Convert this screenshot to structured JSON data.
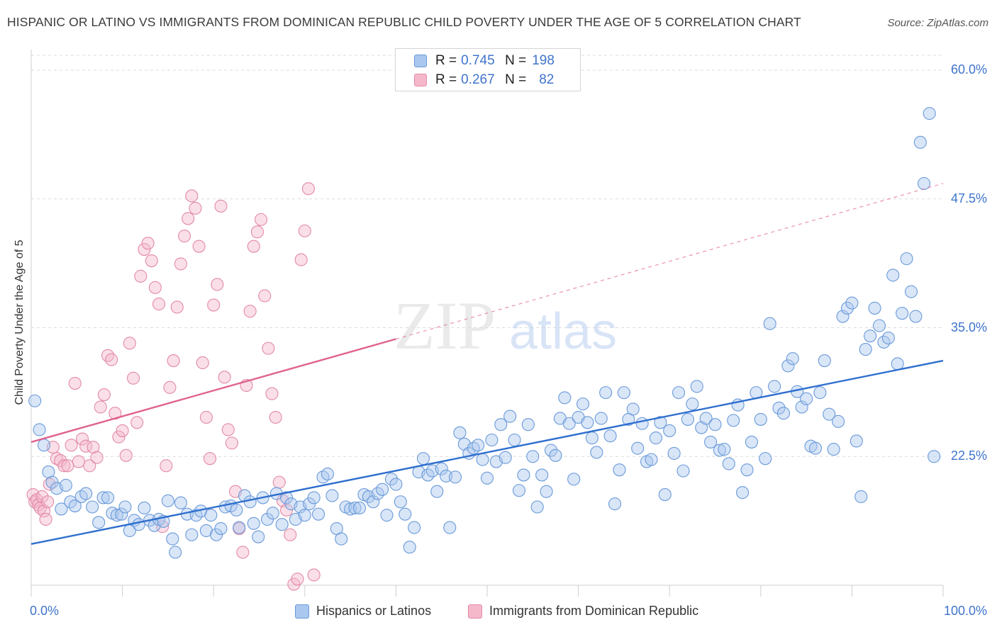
{
  "chart_data": {
    "type": "scatter",
    "title": "HISPANIC OR LATINO VS IMMIGRANTS FROM DOMINICAN REPUBLIC CHILD POVERTY UNDER THE AGE OF 5 CORRELATION CHART",
    "source": "Source: ZipAtlas.com",
    "ylabel": "Child Poverty Under the Age of 5",
    "xlim": [
      0,
      100
    ],
    "ylim": [
      10,
      62
    ],
    "x_tick_labels": [
      "0.0%",
      "100.0%"
    ],
    "y_ticks": [
      22.5,
      35.0,
      47.5,
      60.0
    ],
    "y_tick_labels": [
      "22.5%",
      "35.0%",
      "47.5%",
      "60.0%"
    ],
    "grid": true,
    "watermark": "ZIPatlas",
    "legend_placement": "top-center",
    "stats": [
      {
        "r_label": "R =",
        "r": "0.745",
        "n_label": "N =",
        "n": "198"
      },
      {
        "r_label": "R =",
        "r": "0.267",
        "n_label": "N =",
        "n": "82"
      }
    ],
    "series": [
      {
        "name": "Hispanics or Latinos",
        "fill": "#aac8ef",
        "stroke": "#6a9ad8",
        "line_color": "#2f6fce",
        "trend": {
          "x0": 0,
          "y0": 14.0,
          "x1": 100,
          "y1": 31.8,
          "dashed_to": null
        },
        "points": [
          [
            0.4,
            27.9
          ],
          [
            0.9,
            25.1
          ],
          [
            1.4,
            23.6
          ],
          [
            1.9,
            21.0
          ],
          [
            2.3,
            20.0
          ],
          [
            2.8,
            19.4
          ],
          [
            3.3,
            17.4
          ],
          [
            3.8,
            19.7
          ],
          [
            4.3,
            18.1
          ],
          [
            4.8,
            17.7
          ],
          [
            5.5,
            18.6
          ],
          [
            6.0,
            18.9
          ],
          [
            6.7,
            17.6
          ],
          [
            7.4,
            16.1
          ],
          [
            7.9,
            18.5
          ],
          [
            8.4,
            18.5
          ],
          [
            8.9,
            17.0
          ],
          [
            9.4,
            16.8
          ],
          [
            9.9,
            16.9
          ],
          [
            10.3,
            17.6
          ],
          [
            10.8,
            15.3
          ],
          [
            11.3,
            16.3
          ],
          [
            11.8,
            15.9
          ],
          [
            12.4,
            17.5
          ],
          [
            13.0,
            16.3
          ],
          [
            13.5,
            15.8
          ],
          [
            14.0,
            16.4
          ],
          [
            14.5,
            16.2
          ],
          [
            15.0,
            18.2
          ],
          [
            15.5,
            14.5
          ],
          [
            15.8,
            13.2
          ],
          [
            16.4,
            18.0
          ],
          [
            17.1,
            16.9
          ],
          [
            17.6,
            14.9
          ],
          [
            18.1,
            16.8
          ],
          [
            18.6,
            17.2
          ],
          [
            19.2,
            15.3
          ],
          [
            19.7,
            16.8
          ],
          [
            20.3,
            14.9
          ],
          [
            20.8,
            15.5
          ],
          [
            21.3,
            17.6
          ],
          [
            21.9,
            17.7
          ],
          [
            22.5,
            17.3
          ],
          [
            22.8,
            15.6
          ],
          [
            23.4,
            18.7
          ],
          [
            24.0,
            18.1
          ],
          [
            24.4,
            16.0
          ],
          [
            24.9,
            14.7
          ],
          [
            25.4,
            18.5
          ],
          [
            25.9,
            16.4
          ],
          [
            26.5,
            17.0
          ],
          [
            26.9,
            18.9
          ],
          [
            27.5,
            15.9
          ],
          [
            28.0,
            18.5
          ],
          [
            28.5,
            17.9
          ],
          [
            29.0,
            16.4
          ],
          [
            29.5,
            17.6
          ],
          [
            30.0,
            16.8
          ],
          [
            30.5,
            17.9
          ],
          [
            31.0,
            18.5
          ],
          [
            31.5,
            16.9
          ],
          [
            32.0,
            20.5
          ],
          [
            32.5,
            20.8
          ],
          [
            33.0,
            18.7
          ],
          [
            33.5,
            15.5
          ],
          [
            34.0,
            14.5
          ],
          [
            34.5,
            17.6
          ],
          [
            35.0,
            17.4
          ],
          [
            35.5,
            17.5
          ],
          [
            36.0,
            17.5
          ],
          [
            36.5,
            18.8
          ],
          [
            37.0,
            18.6
          ],
          [
            37.5,
            18.1
          ],
          [
            38.0,
            18.9
          ],
          [
            38.5,
            19.3
          ],
          [
            39.0,
            16.8
          ],
          [
            39.5,
            20.3
          ],
          [
            40.0,
            19.8
          ],
          [
            40.5,
            18.1
          ],
          [
            41.0,
            16.9
          ],
          [
            41.5,
            13.7
          ],
          [
            42.0,
            15.6
          ],
          [
            42.5,
            21.0
          ],
          [
            43.0,
            22.3
          ],
          [
            43.5,
            20.7
          ],
          [
            44.0,
            21.1
          ],
          [
            44.5,
            19.1
          ],
          [
            45.0,
            21.3
          ],
          [
            45.5,
            20.6
          ],
          [
            45.9,
            15.6
          ],
          [
            46.5,
            20.5
          ],
          [
            47.0,
            24.8
          ],
          [
            47.5,
            23.7
          ],
          [
            48.0,
            22.8
          ],
          [
            48.5,
            23.3
          ],
          [
            49.0,
            23.6
          ],
          [
            49.5,
            22.2
          ],
          [
            50.0,
            20.4
          ],
          [
            50.5,
            24.1
          ],
          [
            51.0,
            22.0
          ],
          [
            51.5,
            25.6
          ],
          [
            52.0,
            22.4
          ],
          [
            52.5,
            26.4
          ],
          [
            53.0,
            24.1
          ],
          [
            53.5,
            19.2
          ],
          [
            54.0,
            20.7
          ],
          [
            54.5,
            25.6
          ],
          [
            55.0,
            22.5
          ],
          [
            55.5,
            17.6
          ],
          [
            56.0,
            20.7
          ],
          [
            56.5,
            19.1
          ],
          [
            57.0,
            23.1
          ],
          [
            57.5,
            22.6
          ],
          [
            58.0,
            26.2
          ],
          [
            58.5,
            28.2
          ],
          [
            59.0,
            25.7
          ],
          [
            59.5,
            20.3
          ],
          [
            60.0,
            26.3
          ],
          [
            60.5,
            27.6
          ],
          [
            61.0,
            25.8
          ],
          [
            61.5,
            24.3
          ],
          [
            62.0,
            22.9
          ],
          [
            62.5,
            26.2
          ],
          [
            63.0,
            28.7
          ],
          [
            63.5,
            24.5
          ],
          [
            64.0,
            17.9
          ],
          [
            64.5,
            21.2
          ],
          [
            65.0,
            28.7
          ],
          [
            65.5,
            26.1
          ],
          [
            66.0,
            27.1
          ],
          [
            66.5,
            23.3
          ],
          [
            67.0,
            25.7
          ],
          [
            67.5,
            22.0
          ],
          [
            68.0,
            22.2
          ],
          [
            68.5,
            24.3
          ],
          [
            69.0,
            25.8
          ],
          [
            69.5,
            18.8
          ],
          [
            70.0,
            25.0
          ],
          [
            70.5,
            22.8
          ],
          [
            71.0,
            28.7
          ],
          [
            71.5,
            21.1
          ],
          [
            72.0,
            26.1
          ],
          [
            72.5,
            27.6
          ],
          [
            73.0,
            29.3
          ],
          [
            73.5,
            25.3
          ],
          [
            74.0,
            26.2
          ],
          [
            74.5,
            23.9
          ],
          [
            75.0,
            25.6
          ],
          [
            75.5,
            23.1
          ],
          [
            76.0,
            23.2
          ],
          [
            76.5,
            21.8
          ],
          [
            77.0,
            26.0
          ],
          [
            77.5,
            27.5
          ],
          [
            78.0,
            19.0
          ],
          [
            78.5,
            21.2
          ],
          [
            79.0,
            23.9
          ],
          [
            79.5,
            28.7
          ],
          [
            80.0,
            26.1
          ],
          [
            80.5,
            22.3
          ],
          [
            81.0,
            35.4
          ],
          [
            81.5,
            29.3
          ],
          [
            82.0,
            27.2
          ],
          [
            82.5,
            26.7
          ],
          [
            83.0,
            31.3
          ],
          [
            83.5,
            32.0
          ],
          [
            84.0,
            28.8
          ],
          [
            84.5,
            27.3
          ],
          [
            85.0,
            28.1
          ],
          [
            85.5,
            23.5
          ],
          [
            86.0,
            23.3
          ],
          [
            86.5,
            28.7
          ],
          [
            87.0,
            31.8
          ],
          [
            87.5,
            26.6
          ],
          [
            88.0,
            23.2
          ],
          [
            88.5,
            25.9
          ],
          [
            89.0,
            36.1
          ],
          [
            89.5,
            36.9
          ],
          [
            90.0,
            37.4
          ],
          [
            90.5,
            24.0
          ],
          [
            91.0,
            18.6
          ],
          [
            91.5,
            32.9
          ],
          [
            92.0,
            34.2
          ],
          [
            92.5,
            36.9
          ],
          [
            93.0,
            35.2
          ],
          [
            93.5,
            33.6
          ],
          [
            94.0,
            34.0
          ],
          [
            94.5,
            40.1
          ],
          [
            95.0,
            31.5
          ],
          [
            95.5,
            36.4
          ],
          [
            96.0,
            41.7
          ],
          [
            96.5,
            38.5
          ],
          [
            97.0,
            36.1
          ],
          [
            97.5,
            53.0
          ],
          [
            97.9,
            49.0
          ],
          [
            98.5,
            55.8
          ],
          [
            99.0,
            22.5
          ]
        ]
      },
      {
        "name": "Immigrants from Dominican Republic",
        "fill": "#f5b8cb",
        "stroke": "#e28aa6",
        "line_color": "#e0628e",
        "trend": {
          "x0": 0,
          "y0": 23.9,
          "x1": 40,
          "y1": 33.9,
          "dashed_to": {
            "x": 100,
            "y": 49.0
          }
        },
        "points": [
          [
            0.2,
            18.8
          ],
          [
            0.4,
            18.1
          ],
          [
            0.6,
            18.3
          ],
          [
            0.8,
            17.8
          ],
          [
            1.0,
            17.5
          ],
          [
            1.2,
            18.6
          ],
          [
            1.4,
            17.2
          ],
          [
            1.6,
            16.4
          ],
          [
            1.8,
            18.1
          ],
          [
            2.0,
            19.8
          ],
          [
            2.4,
            23.4
          ],
          [
            2.8,
            22.3
          ],
          [
            3.2,
            22.1
          ],
          [
            3.6,
            21.6
          ],
          [
            4.0,
            21.6
          ],
          [
            4.4,
            23.6
          ],
          [
            4.8,
            29.6
          ],
          [
            5.2,
            22.0
          ],
          [
            5.6,
            24.2
          ],
          [
            6.0,
            23.5
          ],
          [
            6.4,
            21.6
          ],
          [
            6.8,
            23.4
          ],
          [
            7.2,
            22.4
          ],
          [
            7.6,
            27.3
          ],
          [
            8.0,
            28.5
          ],
          [
            8.4,
            32.3
          ],
          [
            8.8,
            31.9
          ],
          [
            9.2,
            26.7
          ],
          [
            9.6,
            24.4
          ],
          [
            10.0,
            25.0
          ],
          [
            10.4,
            22.6
          ],
          [
            10.8,
            33.5
          ],
          [
            11.2,
            30.1
          ],
          [
            11.6,
            25.8
          ],
          [
            12.0,
            40.0
          ],
          [
            12.4,
            42.6
          ],
          [
            12.8,
            43.2
          ],
          [
            13.2,
            41.5
          ],
          [
            13.6,
            38.9
          ],
          [
            14.0,
            37.3
          ],
          [
            14.4,
            15.7
          ],
          [
            14.8,
            21.6
          ],
          [
            15.2,
            29.2
          ],
          [
            15.6,
            31.8
          ],
          [
            16.0,
            37.0
          ],
          [
            16.4,
            41.2
          ],
          [
            16.8,
            43.9
          ],
          [
            17.2,
            45.6
          ],
          [
            17.6,
            47.8
          ],
          [
            18.0,
            46.6
          ],
          [
            18.4,
            42.9
          ],
          [
            18.8,
            31.6
          ],
          [
            19.2,
            26.3
          ],
          [
            19.6,
            22.3
          ],
          [
            20.0,
            37.2
          ],
          [
            20.4,
            39.2
          ],
          [
            20.8,
            46.8
          ],
          [
            21.2,
            30.2
          ],
          [
            21.6,
            25.1
          ],
          [
            22.0,
            23.8
          ],
          [
            22.4,
            19.1
          ],
          [
            22.8,
            15.5
          ],
          [
            23.2,
            13.2
          ],
          [
            23.6,
            29.4
          ],
          [
            24.0,
            36.6
          ],
          [
            24.4,
            42.9
          ],
          [
            24.8,
            44.3
          ],
          [
            25.2,
            45.5
          ],
          [
            25.6,
            38.1
          ],
          [
            26.0,
            33.0
          ],
          [
            26.4,
            28.6
          ],
          [
            26.8,
            26.3
          ],
          [
            27.2,
            20.0
          ],
          [
            27.6,
            18.2
          ],
          [
            28.0,
            17.3
          ],
          [
            28.4,
            14.9
          ],
          [
            28.8,
            10.1
          ],
          [
            29.2,
            10.6
          ],
          [
            29.6,
            41.6
          ],
          [
            30.0,
            44.4
          ],
          [
            30.4,
            48.5
          ],
          [
            31.0,
            11.0
          ]
        ]
      }
    ]
  }
}
